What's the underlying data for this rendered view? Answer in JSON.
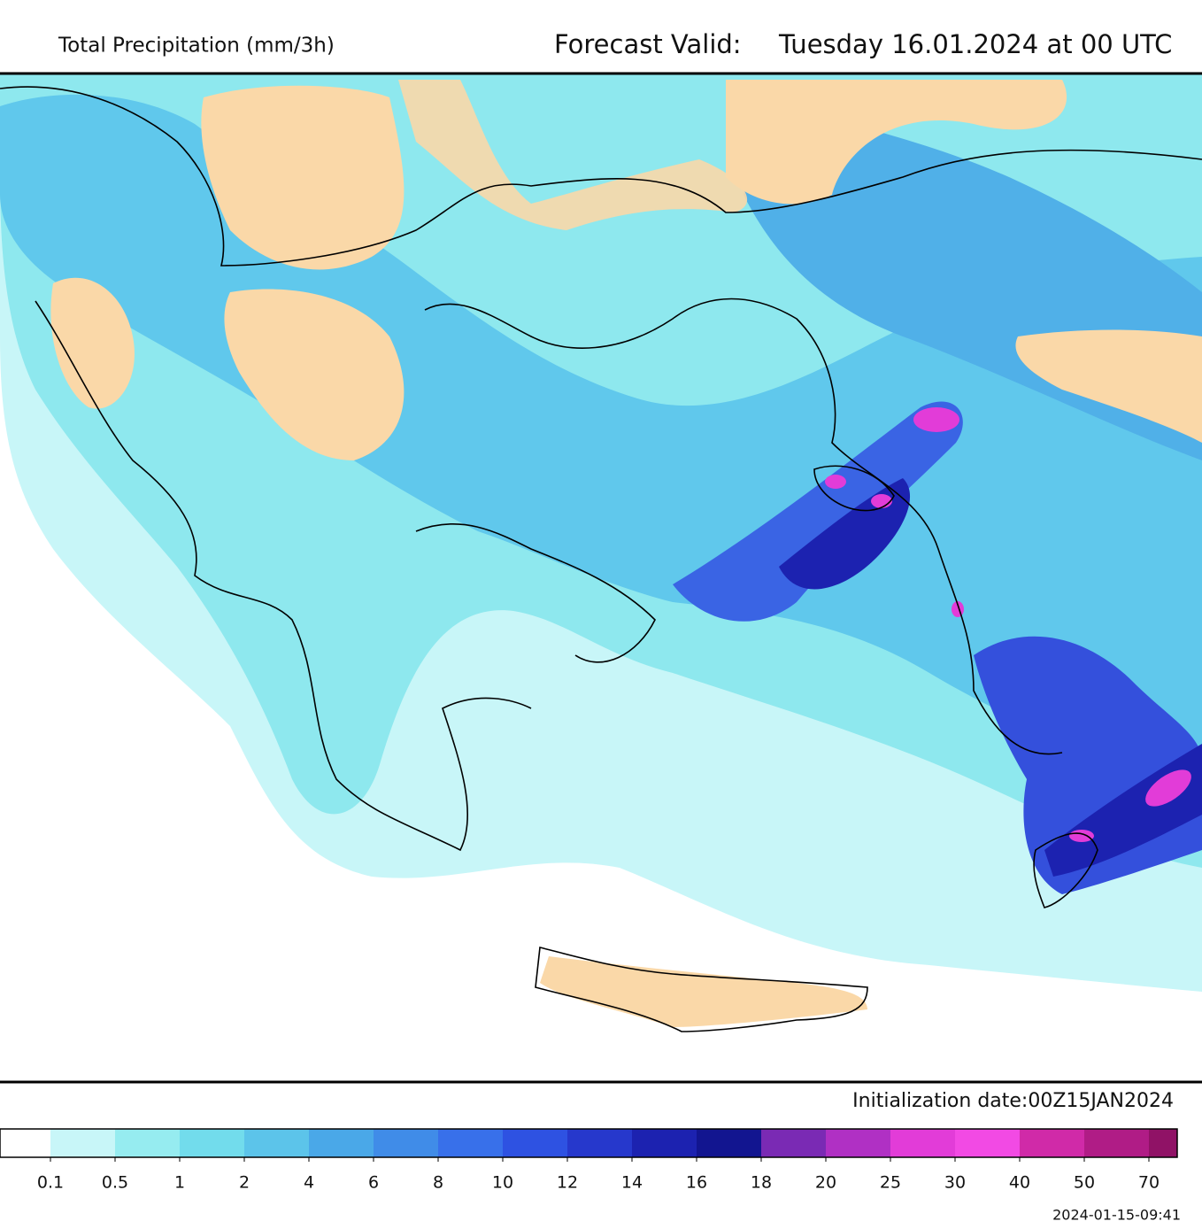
{
  "header": {
    "title": "Total Precipitation (mm/3h)",
    "valid_label": "Forecast Valid:",
    "valid_time": "Tuesday 16.01.2024 at 00 UTC"
  },
  "footer": {
    "initialization": "Initialization date:00Z15JAN2024",
    "timestamp": "2024-01-15-09:41"
  },
  "legend": {
    "colors": [
      "#ffffff",
      "#c8f6f8",
      "#96ecf0",
      "#72dcec",
      "#5cc4ea",
      "#4aa8e8",
      "#408ce8",
      "#3870ea",
      "#2e52e2",
      "#2638cc",
      "#1c22b0",
      "#121590",
      "#7a2ab4",
      "#b030c4",
      "#e23cd8",
      "#f24ae4",
      "#d02aa8",
      "#b01c86",
      "#901266",
      "#6e0a46"
    ],
    "labels": [
      "0.1",
      "0.5",
      "1",
      "2",
      "4",
      "6",
      "8",
      "10",
      "12",
      "14",
      "16",
      "18",
      "20",
      "25",
      "30",
      "40",
      "50",
      "70"
    ]
  }
}
